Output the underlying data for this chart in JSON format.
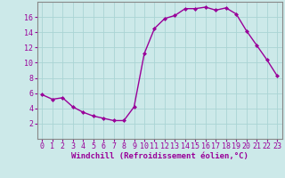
{
  "x": [
    0,
    1,
    2,
    3,
    4,
    5,
    6,
    7,
    8,
    9,
    10,
    11,
    12,
    13,
    14,
    15,
    16,
    17,
    18,
    19,
    20,
    21,
    22,
    23
  ],
  "y": [
    5.8,
    5.2,
    5.4,
    4.2,
    3.5,
    3.0,
    2.7,
    2.4,
    2.4,
    4.2,
    11.2,
    14.5,
    15.8,
    16.2,
    17.1,
    17.1,
    17.3,
    16.9,
    17.2,
    16.4,
    14.2,
    12.3,
    10.4,
    8.3
  ],
  "line_color": "#990099",
  "marker": "D",
  "marker_size": 2.0,
  "line_width": 1.0,
  "xlabel": "Windchill (Refroidissement éolien,°C)",
  "ylim": [
    0,
    18
  ],
  "xlim": [
    -0.5,
    23.5
  ],
  "yticks": [
    2,
    4,
    6,
    8,
    10,
    12,
    14,
    16
  ],
  "xticks": [
    0,
    1,
    2,
    3,
    4,
    5,
    6,
    7,
    8,
    9,
    10,
    11,
    12,
    13,
    14,
    15,
    16,
    17,
    18,
    19,
    20,
    21,
    22,
    23
  ],
  "bg_color": "#cce9e9",
  "grid_color": "#aad4d4",
  "line_border_color": "#888888",
  "tick_label_color": "#990099",
  "xlabel_color": "#990099",
  "xlabel_fontsize": 6.5,
  "tick_fontsize": 6.0,
  "ytick_label_color": "#990099"
}
